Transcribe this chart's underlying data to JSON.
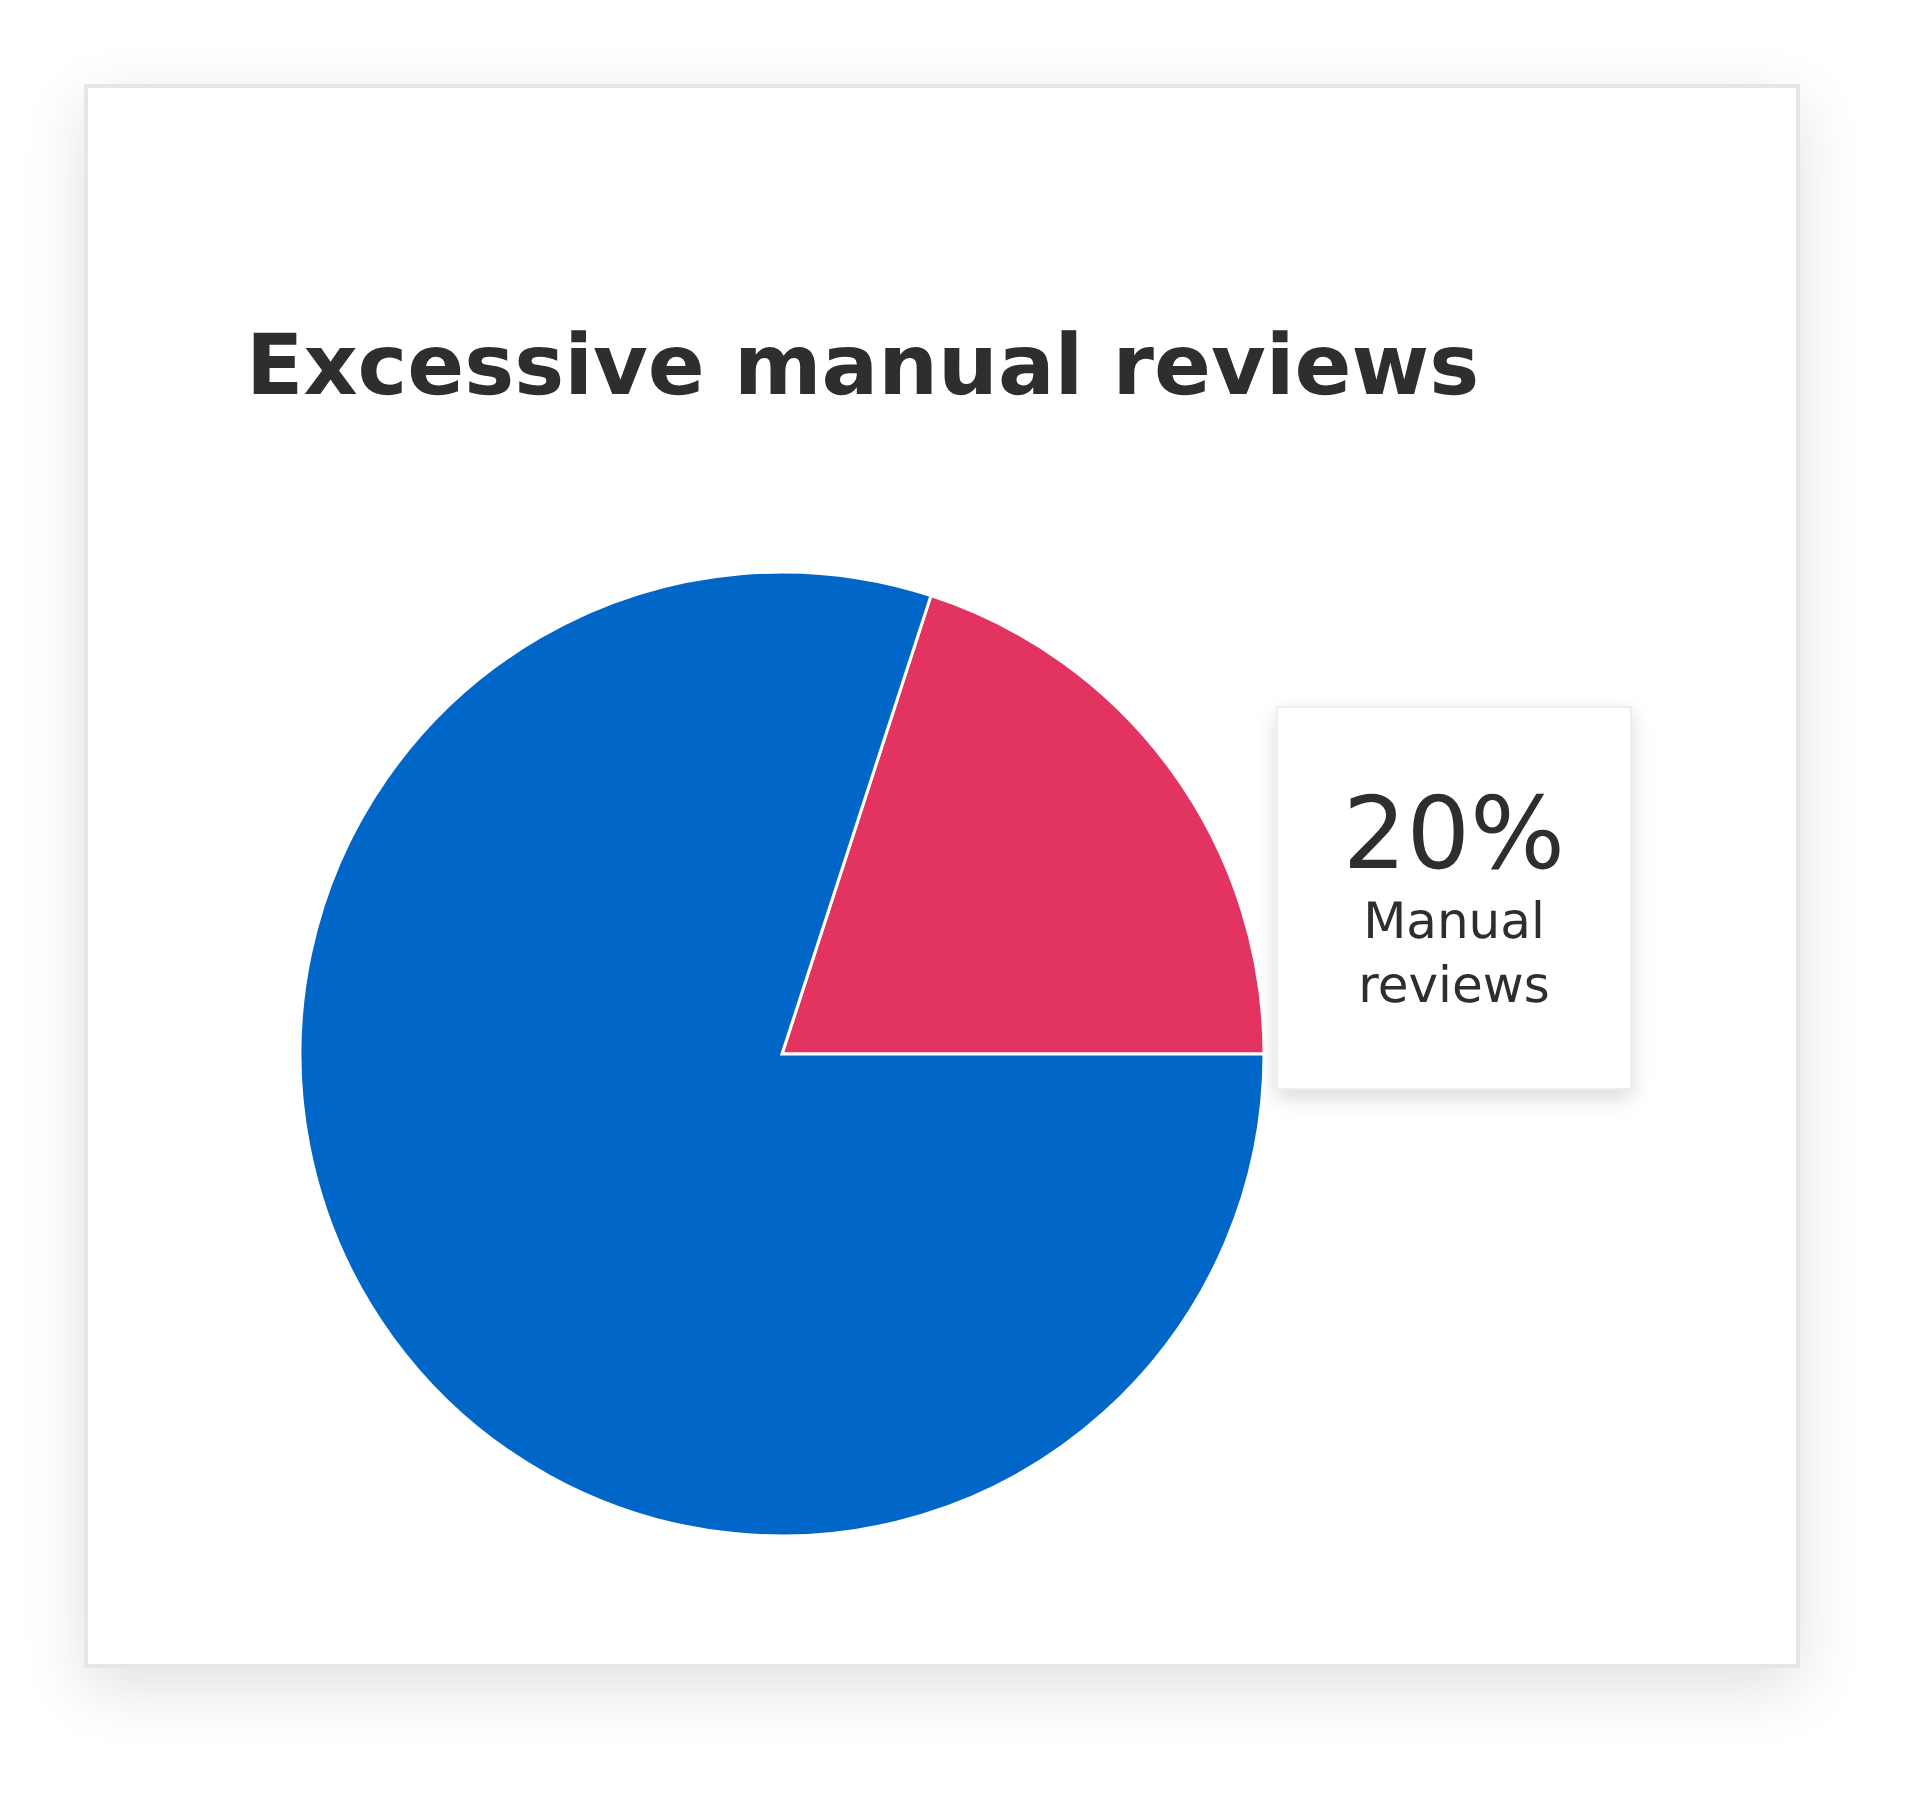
{
  "chart_data": {
    "type": "pie",
    "title": "Excessive manual reviews",
    "categories": [
      "Manual reviews",
      null
    ],
    "values": [
      20,
      80
    ],
    "colors": [
      "#e33461",
      "#0066c8"
    ],
    "value_labels": [
      "20%",
      null
    ]
  }
}
